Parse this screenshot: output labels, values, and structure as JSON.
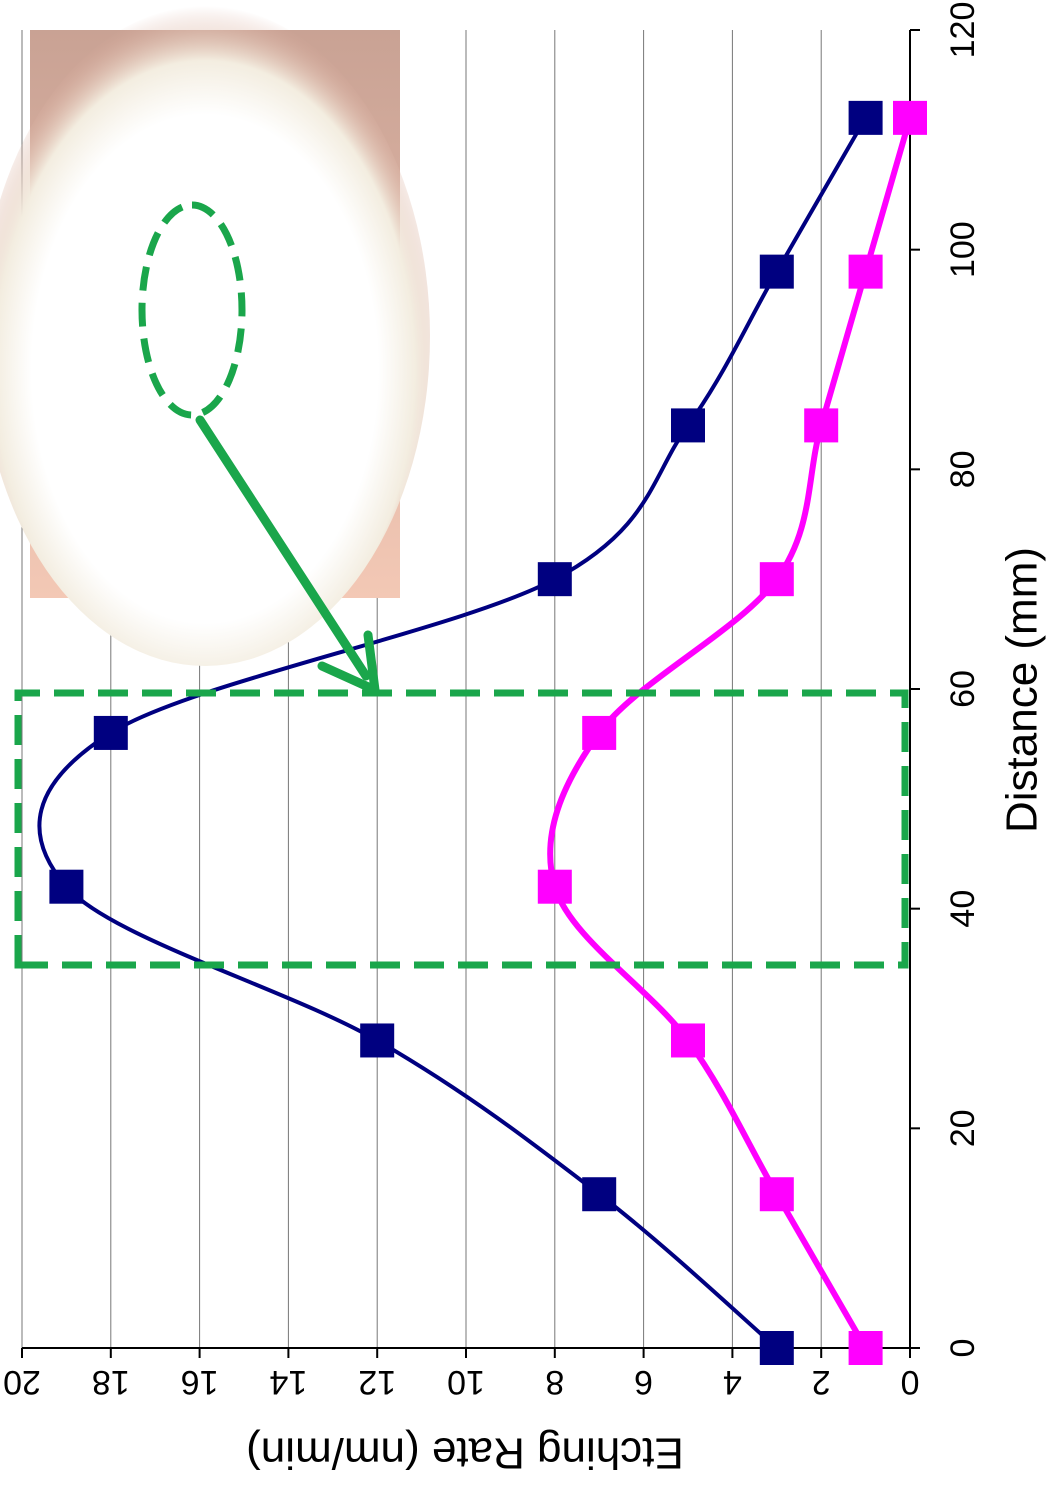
{
  "chart_data": {
    "type": "line",
    "x_label": "Distance (mm)",
    "y_label": "Etching Rate (nm/min)",
    "x": [
      0,
      14,
      28,
      42,
      56,
      70,
      84,
      98,
      112
    ],
    "series": [
      {
        "color": "#000080",
        "values": [
          3,
          7,
          12,
          19,
          18,
          8,
          5,
          3,
          1
        ]
      },
      {
        "color": "#ff00ff",
        "values": [
          1,
          3,
          5,
          8,
          7,
          3,
          2,
          1,
          0
        ]
      }
    ],
    "xlim": [
      0,
      120
    ],
    "xticks": [
      0,
      20,
      40,
      60,
      80,
      100,
      120
    ],
    "ylim": [
      0,
      20
    ],
    "yticks": [
      0,
      2,
      4,
      6,
      8,
      10,
      12,
      14,
      16,
      18,
      20
    ],
    "grid": true
  }
}
